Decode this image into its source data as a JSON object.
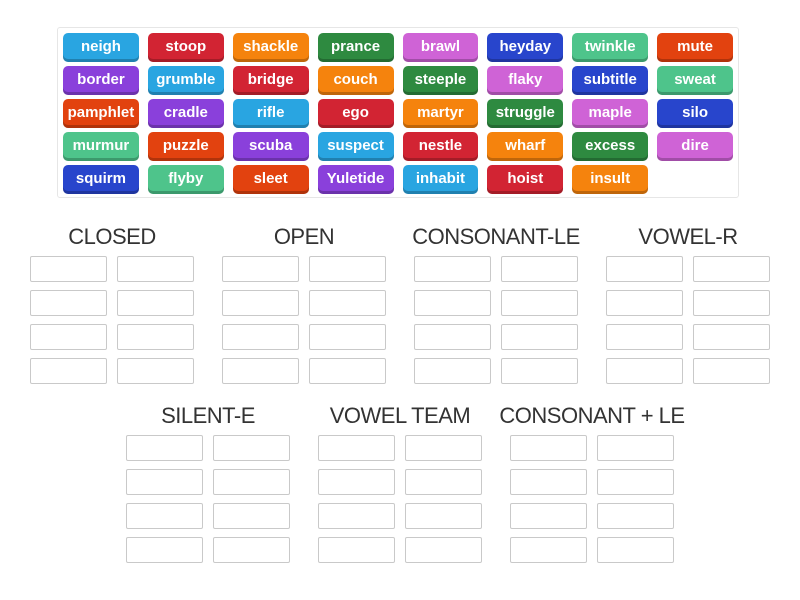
{
  "activity": {
    "tile_text_color": "#FFFFFF",
    "tile_palette": [
      "#29A5E1",
      "#D22433",
      "#F5830D",
      "#2E8A40",
      "#CF63D6",
      "#2845CC",
      "#4EC48B",
      "#E2420F",
      "#8A40DB"
    ],
    "panel_border_color": "#E6E6E6",
    "box_border_color": "#C9C9C9",
    "header_text_color": "#333333"
  },
  "word_bank": {
    "words": [
      "neigh",
      "stoop",
      "shackle",
      "prance",
      "brawl",
      "heyday",
      "twinkle",
      "mute",
      "border",
      "grumble",
      "bridge",
      "couch",
      "steeple",
      "flaky",
      "subtitle",
      "sweat",
      "pamphlet",
      "cradle",
      "rifle",
      "ego",
      "martyr",
      "struggle",
      "maple",
      "silo",
      "murmur",
      "puzzle",
      "scuba",
      "suspect",
      "nestle",
      "wharf",
      "excess",
      "dire",
      "squirm",
      "flyby",
      "sleet",
      "Yuletide",
      "inhabit",
      "hoist",
      "insult"
    ]
  },
  "categories": {
    "row1": [
      "CLOSED",
      "OPEN",
      "CONSONANT-LE",
      "VOWEL-R"
    ],
    "row2": [
      "SILENT-E",
      "VOWEL TEAM",
      "CONSONANT + LE"
    ],
    "slots_per_category": 8
  }
}
